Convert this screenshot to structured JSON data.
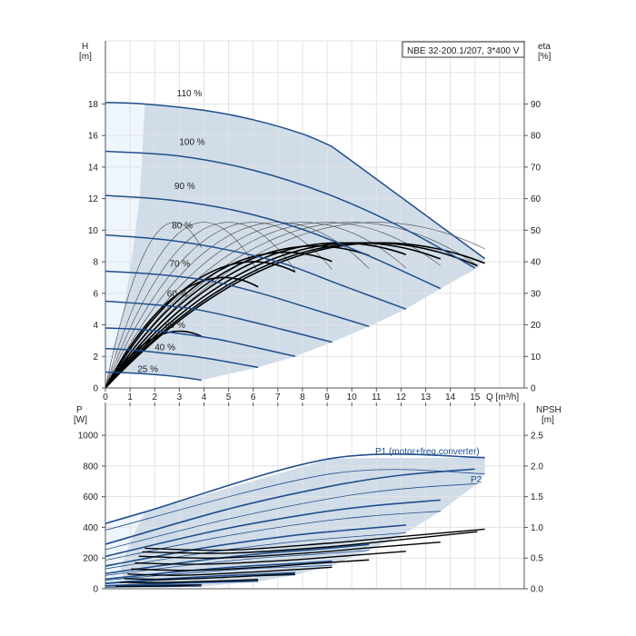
{
  "chart_data": [
    {
      "type": "line",
      "title": "NBE 32-200.1/207, 3*400 V",
      "xlabel": "Q [m³/h]",
      "ylabel_left": [
        "H",
        "[m]"
      ],
      "ylabel_right": [
        "eta",
        "[%]"
      ],
      "x_ticks": [
        "0",
        "1",
        "2",
        "3",
        "4",
        "5",
        "6",
        "7",
        "8",
        "9",
        "10",
        "11",
        "12",
        "13",
        "14",
        "15"
      ],
      "y_ticks_left": [
        "0",
        "2",
        "4",
        "6",
        "8",
        "10",
        "12",
        "14",
        "16",
        "18"
      ],
      "y_ticks_right": [
        "0",
        "10",
        "20",
        "30",
        "40",
        "50",
        "60",
        "70",
        "80",
        "90"
      ],
      "xlim": [
        0,
        17
      ],
      "ylim_left": [
        0,
        22
      ],
      "ylim_right": [
        0,
        110
      ],
      "grid": true,
      "colors": {
        "curve": "#1f4e8c",
        "shade": "#d0dce8",
        "shade_light": "#eef5fc",
        "eta": "#000000",
        "grid": "#e2e2e2"
      },
      "head_curves": [
        {
          "name": "110 %",
          "label_at": [
            2.9,
            18.5
          ],
          "points": [
            [
              0,
              18.1
            ],
            [
              1.6,
              18.0
            ],
            [
              4,
              17.6
            ],
            [
              6,
              17.0
            ],
            [
              8,
              16.1
            ],
            [
              9.2,
              15.3
            ]
          ]
        },
        {
          "name": "100 %",
          "label_at": [
            3.0,
            15.4
          ],
          "points": [
            [
              0,
              15
            ],
            [
              3,
              14.7
            ],
            [
              6,
              13.8
            ],
            [
              9,
              12.3
            ],
            [
              12,
              10.2
            ],
            [
              15,
              7.6
            ]
          ]
        },
        {
          "name": "90 %",
          "label_at": [
            2.8,
            12.6
          ],
          "points": [
            [
              0,
              12.2
            ],
            [
              2.7,
              11.9
            ],
            [
              5.4,
              11.2
            ],
            [
              8.1,
              10.0
            ],
            [
              10.8,
              8.3
            ],
            [
              13.6,
              6.3
            ]
          ]
        },
        {
          "name": "80 %",
          "label_at": [
            2.7,
            10.1
          ],
          "points": [
            [
              0,
              9.7
            ],
            [
              2.4,
              9.4
            ],
            [
              4.8,
              8.8
            ],
            [
              7.2,
              7.9
            ],
            [
              9.6,
              6.5
            ],
            [
              12.2,
              5.0
            ]
          ]
        },
        {
          "name": "70 %",
          "label_at": [
            2.6,
            7.7
          ],
          "points": [
            [
              0,
              7.4
            ],
            [
              2.1,
              7.2
            ],
            [
              4.2,
              6.8
            ],
            [
              6.3,
              6.0
            ],
            [
              8.4,
              5.0
            ],
            [
              10.7,
              3.9
            ]
          ]
        },
        {
          "name": "60 %",
          "label_at": [
            2.5,
            5.8
          ],
          "points": [
            [
              0,
              5.5
            ],
            [
              1.8,
              5.3
            ],
            [
              3.6,
              5.0
            ],
            [
              5.4,
              4.4
            ],
            [
              7.2,
              3.7
            ],
            [
              9.2,
              2.9
            ]
          ]
        },
        {
          "name": "50 %",
          "label_at": [
            2.4,
            3.8
          ],
          "points": [
            [
              0,
              3.8
            ],
            [
              1.5,
              3.7
            ],
            [
              3,
              3.45
            ],
            [
              4.5,
              3.1
            ],
            [
              6,
              2.6
            ],
            [
              7.7,
              2.0
            ]
          ]
        },
        {
          "name": "40 %",
          "label_at": [
            2.0,
            2.4
          ],
          "points": [
            [
              0,
              2.5
            ],
            [
              1.2,
              2.4
            ],
            [
              2.4,
              2.2
            ],
            [
              3.6,
              2.0
            ],
            [
              4.8,
              1.7
            ],
            [
              6.2,
              1.3
            ]
          ]
        },
        {
          "name": "25 %",
          "label_at": [
            1.3,
            1.0
          ],
          "points": [
            [
              0,
              1.0
            ],
            [
              1,
              0.95
            ],
            [
              2,
              0.85
            ],
            [
              3,
              0.7
            ],
            [
              3.9,
              0.5
            ]
          ]
        }
      ],
      "max_boundary": [
        [
          9.2,
          15.3
        ],
        [
          15.4,
          8.2
        ]
      ],
      "operating_region": [
        [
          1.6,
          18.0
        ],
        [
          4,
          17.6
        ],
        [
          6,
          17.0
        ],
        [
          8,
          16.1
        ],
        [
          9.2,
          15.3
        ],
        [
          15.4,
          8.2
        ],
        [
          15.1,
          7.6
        ],
        [
          13.6,
          6.3
        ],
        [
          12.2,
          5.0
        ],
        [
          10.7,
          3.9
        ],
        [
          9.2,
          2.9
        ],
        [
          7.7,
          2.0
        ],
        [
          6.2,
          1.3
        ],
        [
          3.9,
          0.5
        ],
        [
          1.5,
          0.95
        ],
        [
          0.6,
          1.0
        ],
        [
          0.3,
          2.5
        ],
        [
          0.6,
          3.8
        ],
        [
          0.8,
          5.5
        ],
        [
          1.0,
          7.4
        ],
        [
          1.2,
          9.7
        ],
        [
          1.4,
          12.2
        ],
        [
          1.5,
          15.0
        ]
      ],
      "light_region": [
        [
          0,
          0
        ],
        [
          0,
          18.1
        ],
        [
          1.6,
          18.0
        ],
        [
          1.5,
          15.0
        ],
        [
          1.4,
          12.2
        ],
        [
          1.2,
          9.7
        ],
        [
          1.0,
          7.4
        ],
        [
          0.8,
          5.5
        ],
        [
          0.6,
          3.8
        ],
        [
          0.3,
          2.5
        ],
        [
          0.6,
          1.0
        ],
        [
          0.3,
          0.6
        ]
      ],
      "eta_hydraulic_curves": [
        {
          "q_peak": 2.8,
          "eta_peak": 52.5,
          "q_end": 3.9
        },
        {
          "q_peak": 4.0,
          "eta_peak": 52.5,
          "q_end": 6.2
        },
        {
          "q_peak": 5.0,
          "eta_peak": 52.5,
          "q_end": 7.7
        },
        {
          "q_peak": 6.0,
          "eta_peak": 52.5,
          "q_end": 9.2
        },
        {
          "q_peak": 7.0,
          "eta_peak": 52.5,
          "q_end": 10.7
        },
        {
          "q_peak": 8.0,
          "eta_peak": 52.5,
          "q_end": 12.2
        },
        {
          "q_peak": 9.0,
          "eta_peak": 52.5,
          "q_end": 13.6
        },
        {
          "q_peak": 10.0,
          "eta_peak": 52.5,
          "q_end": 15.1
        },
        {
          "q_peak": 11.0,
          "eta_peak": 52.5,
          "q_end": 15.4
        }
      ],
      "eta_total_curves": [
        {
          "q_peak": 3.0,
          "eta_peak": 18,
          "q_end": 3.9
        },
        {
          "q_peak": 4.8,
          "eta_peak": 35,
          "q_end": 6.2
        },
        {
          "q_peak": 6.0,
          "eta_peak": 40,
          "q_end": 7.7
        },
        {
          "q_peak": 7.3,
          "eta_peak": 43,
          "q_end": 9.2
        },
        {
          "q_peak": 8.5,
          "eta_peak": 45,
          "q_end": 10.7
        },
        {
          "q_peak": 9.5,
          "eta_peak": 46,
          "q_end": 12.2
        },
        {
          "q_peak": 10.2,
          "eta_peak": 46,
          "q_end": 13.6
        },
        {
          "q_peak": 10.8,
          "eta_peak": 46,
          "q_end": 15.1
        },
        {
          "q_peak": 11.2,
          "eta_peak": 46,
          "q_end": 15.4
        }
      ]
    },
    {
      "type": "line",
      "xlabel": "",
      "ylabel_left": [
        "P",
        "[W]"
      ],
      "ylabel_right": [
        "NPSH",
        "[m]"
      ],
      "y_ticks_left": [
        "0",
        "200",
        "400",
        "600",
        "800",
        "1000"
      ],
      "y_ticks_right": [
        "0.0",
        "0.5",
        "1.0",
        "1.5",
        "2.0",
        "2.5"
      ],
      "xlim": [
        0,
        17
      ],
      "ylim_left": [
        0,
        1190
      ],
      "ylim_right": [
        0,
        2.975
      ],
      "grid": true,
      "series_labels": {
        "p1": "P1 (motor+freq.converter)",
        "p2": "P2"
      },
      "p1_curves": [
        [
          [
            0,
            425
          ],
          [
            1.6,
            500
          ],
          [
            9.2,
            850
          ],
          [
            15.4,
            855
          ]
        ],
        [
          [
            0,
            290
          ],
          [
            5,
            520
          ],
          [
            9.2,
            670
          ],
          [
            12,
            740
          ],
          [
            15,
            780
          ]
        ],
        [
          [
            0,
            211
          ],
          [
            4.5,
            379
          ],
          [
            8.3,
            488
          ],
          [
            10.8,
            540
          ],
          [
            13.6,
            578
          ]
        ],
        [
          [
            0,
            148
          ],
          [
            4,
            266
          ],
          [
            7.4,
            343
          ],
          [
            9.6,
            379
          ],
          [
            12.2,
            415
          ]
        ],
        [
          [
            0,
            99
          ],
          [
            3.5,
            178
          ],
          [
            6.4,
            230
          ],
          [
            8.4,
            254
          ],
          [
            10.7,
            288
          ]
        ],
        [
          [
            0,
            63
          ],
          [
            3,
            112
          ],
          [
            5.5,
            145
          ],
          [
            7.2,
            160
          ],
          [
            9.2,
            180
          ]
        ],
        [
          [
            0,
            36
          ],
          [
            2.5,
            65
          ],
          [
            4.6,
            84
          ],
          [
            6,
            93
          ],
          [
            7.7,
            105
          ]
        ],
        [
          [
            0,
            19
          ],
          [
            2,
            33
          ],
          [
            3.7,
            43
          ],
          [
            4.8,
            47
          ],
          [
            6.2,
            55
          ]
        ],
        [
          [
            0,
            20
          ],
          [
            1.2,
            22
          ],
          [
            2.3,
            24
          ],
          [
            3.9,
            26
          ]
        ]
      ],
      "p2_curves": [
        [
          [
            0,
            382
          ],
          [
            9.2,
            750
          ],
          [
            15.4,
            750
          ]
        ],
        [
          [
            0,
            255
          ],
          [
            5,
            455
          ],
          [
            9.2,
            590
          ],
          [
            12,
            650
          ],
          [
            15.1,
            685
          ]
        ],
        [
          [
            0,
            186
          ],
          [
            4.5,
            332
          ],
          [
            8.3,
            430
          ],
          [
            10.8,
            474
          ],
          [
            13.6,
            505
          ]
        ],
        [
          [
            0,
            130
          ],
          [
            4,
            233
          ],
          [
            7.4,
            302
          ],
          [
            9.6,
            333
          ],
          [
            12.2,
            365
          ]
        ],
        [
          [
            0,
            87
          ],
          [
            3.5,
            156
          ],
          [
            6.4,
            202
          ],
          [
            8.4,
            223
          ],
          [
            10.7,
            250
          ]
        ],
        [
          [
            0,
            55
          ],
          [
            3,
            98
          ],
          [
            5.5,
            127
          ],
          [
            7.2,
            140
          ],
          [
            9.2,
            152
          ]
        ],
        [
          [
            0,
            32
          ],
          [
            2.5,
            57
          ],
          [
            4.6,
            74
          ],
          [
            6,
            82
          ],
          [
            7.7,
            90
          ]
        ],
        [
          [
            0,
            16
          ],
          [
            2,
            29
          ],
          [
            3.7,
            38
          ],
          [
            4.8,
            42
          ],
          [
            6.2,
            47
          ]
        ],
        [
          [
            0,
            10
          ],
          [
            1.2,
            12
          ],
          [
            2.3,
            13
          ],
          [
            3.9,
            15
          ]
        ]
      ],
      "npsh_curves": [
        [
          [
            1.6,
            0.66
          ],
          [
            5,
            0.63
          ],
          [
            9,
            0.74
          ],
          [
            12,
            0.85
          ],
          [
            15.4,
            0.97
          ]
        ],
        [
          [
            1.5,
            0.6
          ],
          [
            5,
            0.58
          ],
          [
            9,
            0.68
          ],
          [
            12,
            0.8
          ],
          [
            15.1,
            0.93
          ]
        ],
        [
          [
            1.35,
            0.53
          ],
          [
            4.5,
            0.5
          ],
          [
            8.1,
            0.58
          ],
          [
            10.8,
            0.67
          ],
          [
            13.6,
            0.76
          ]
        ],
        [
          [
            1.2,
            0.42
          ],
          [
            4,
            0.4
          ],
          [
            7.2,
            0.46
          ],
          [
            9.6,
            0.53
          ],
          [
            12.2,
            0.61
          ]
        ],
        [
          [
            1.05,
            0.32
          ],
          [
            3.5,
            0.3
          ],
          [
            6.3,
            0.35
          ],
          [
            8.4,
            0.41
          ],
          [
            10.7,
            0.47
          ]
        ],
        [
          [
            0.9,
            0.24
          ],
          [
            3,
            0.22
          ],
          [
            5.4,
            0.26
          ],
          [
            7.2,
            0.3
          ],
          [
            9.2,
            0.35
          ]
        ],
        [
          [
            0.75,
            0.165
          ],
          [
            2.5,
            0.155
          ],
          [
            4.5,
            0.18
          ],
          [
            6,
            0.21
          ],
          [
            7.7,
            0.24
          ]
        ],
        [
          [
            0.6,
            0.105
          ],
          [
            2,
            0.1
          ],
          [
            3.6,
            0.115
          ],
          [
            4.8,
            0.13
          ],
          [
            6.2,
            0.15
          ]
        ],
        [
          [
            0.4,
            0.04
          ],
          [
            1.3,
            0.04
          ],
          [
            2.3,
            0.045
          ],
          [
            3,
            0.05
          ],
          [
            3.9,
            0.06
          ]
        ]
      ],
      "operating_region": [
        [
          1.6,
          500
        ],
        [
          9.2,
          850
        ],
        [
          15.4,
          855
        ],
        [
          15.4,
          750
        ],
        [
          15.1,
          685
        ],
        [
          13.6,
          505
        ],
        [
          12.2,
          365
        ],
        [
          10.7,
          250
        ],
        [
          9.2,
          152
        ],
        [
          7.7,
          90
        ],
        [
          6.2,
          47
        ],
        [
          3.9,
          15
        ],
        [
          1.0,
          10
        ],
        [
          0.6,
          120
        ],
        [
          1.0,
          300
        ]
      ],
      "light_region": [
        [
          0,
          0
        ],
        [
          0,
          425
        ],
        [
          1.6,
          500
        ],
        [
          1.0,
          300
        ],
        [
          0.6,
          120
        ],
        [
          1.0,
          10
        ]
      ]
    }
  ]
}
